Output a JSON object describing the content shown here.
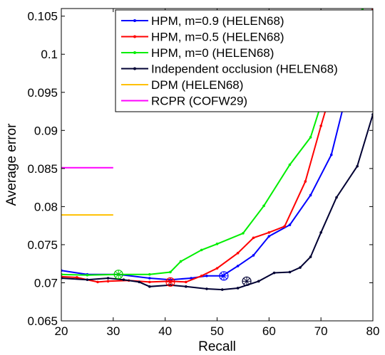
{
  "chart_data": {
    "type": "line",
    "xlabel": "Recall",
    "ylabel": "Average error",
    "xlim": [
      20,
      80
    ],
    "ylim": [
      0.065,
      0.106
    ],
    "xticks": [
      20,
      30,
      40,
      50,
      60,
      70,
      80
    ],
    "yticks": [
      0.065,
      0.07,
      0.075,
      0.08,
      0.085,
      0.09,
      0.095,
      0.1,
      0.105
    ],
    "ytick_labels": [
      "0.065",
      "0.07",
      "0.075",
      "0.08",
      "0.085",
      "0.09",
      "0.095",
      "0.1",
      "0.105"
    ],
    "grid": false,
    "legend_position": "top-right",
    "series": [
      {
        "name": "HPM, m=0.9 (HELEN68)",
        "color": "#0000ff",
        "marker": "dot",
        "x": [
          20,
          25,
          31,
          37,
          41,
          45,
          48,
          51,
          54,
          57,
          60,
          64,
          68,
          72,
          75,
          80
        ],
        "y": [
          0.0716,
          0.0711,
          0.0711,
          0.0706,
          0.0704,
          0.0706,
          0.0709,
          0.0709,
          0.0722,
          0.0736,
          0.0761,
          0.0776,
          0.0815,
          0.0868,
          0.095,
          0.105
        ]
      },
      {
        "name": "HPM, m=0.5 (HELEN68)",
        "color": "#ff0000",
        "marker": "dot",
        "x": [
          20,
          23,
          27,
          29,
          33,
          37,
          41,
          44,
          47,
          50,
          54,
          57,
          60,
          63,
          67,
          70,
          73,
          80
        ],
        "y": [
          0.0708,
          0.0707,
          0.0701,
          0.0702,
          0.0703,
          0.0701,
          0.0702,
          0.0701,
          0.0709,
          0.0719,
          0.0739,
          0.0759,
          0.0766,
          0.0774,
          0.0833,
          0.0906,
          0.0975,
          0.106
        ]
      },
      {
        "name": "HPM, m=0 (HELEN68)",
        "color": "#00ee00",
        "marker": "dot",
        "x": [
          20,
          25,
          31,
          37,
          41,
          43,
          47,
          50,
          55,
          59,
          64,
          68,
          71,
          75,
          78
        ],
        "y": [
          0.0711,
          0.071,
          0.0711,
          0.0711,
          0.0714,
          0.0728,
          0.0743,
          0.0751,
          0.0765,
          0.0801,
          0.0855,
          0.0891,
          0.0955,
          0.1,
          0.106
        ]
      },
      {
        "name": "Independent occlusion (HELEN68)",
        "color": "#000033",
        "marker": "dot",
        "x": [
          20,
          25,
          29,
          32,
          35,
          37,
          41,
          44,
          48,
          51,
          54,
          58,
          61,
          64,
          66,
          68,
          70,
          73,
          77,
          80
        ],
        "y": [
          0.0706,
          0.0704,
          0.0706,
          0.0704,
          0.0701,
          0.0695,
          0.0697,
          0.0695,
          0.0692,
          0.0691,
          0.0693,
          0.0702,
          0.0713,
          0.0714,
          0.072,
          0.0734,
          0.0766,
          0.0812,
          0.0853,
          0.0921
        ]
      }
    ],
    "reference_lines": [
      {
        "name": "DPM (HELEN68)",
        "color": "#ffc000",
        "x": [
          20,
          30
        ],
        "y": 0.0789
      },
      {
        "name": "RCPR (COFW29)",
        "color": "#ff00ff",
        "x": [
          20,
          30
        ],
        "y": 0.0851
      }
    ],
    "circle_markers": [
      {
        "series": "HPM, m=0.9 (HELEN68)",
        "x": 51.3,
        "y": 0.0709,
        "color": "#0000ff"
      },
      {
        "series": "HPM, m=0.5 (HELEN68)",
        "x": 41,
        "y": 0.0701,
        "color": "#ff0000"
      },
      {
        "series": "HPM, m=0 (HELEN68)",
        "x": 31,
        "y": 0.0711,
        "color": "#00cc00"
      },
      {
        "series": "Independent occlusion (HELEN68)",
        "x": 55.7,
        "y": 0.0702,
        "color": "#000033"
      }
    ]
  }
}
